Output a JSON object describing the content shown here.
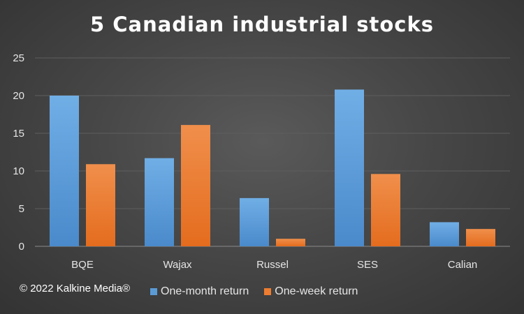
{
  "chart_data": {
    "type": "bar",
    "title": "5 Canadian industrial stocks",
    "categories": [
      "BQE",
      "Wajax",
      "Russel",
      "SES",
      "Calian"
    ],
    "series": [
      {
        "name": "One-month return",
        "color": "#5b9bd5",
        "values": [
          20.0,
          11.7,
          6.4,
          20.8,
          3.2
        ]
      },
      {
        "name": "One-week return",
        "color": "#ed7d31",
        "values": [
          10.9,
          16.1,
          1.0,
          9.6,
          2.3
        ]
      }
    ],
    "ylim": [
      0,
      25
    ],
    "yticks": [
      0,
      5,
      10,
      15,
      20,
      25
    ],
    "grid": true,
    "legend": "bottom",
    "xlabel": "",
    "ylabel": ""
  },
  "footer": {
    "copyright": "© 2022 Kalkine Media®"
  }
}
